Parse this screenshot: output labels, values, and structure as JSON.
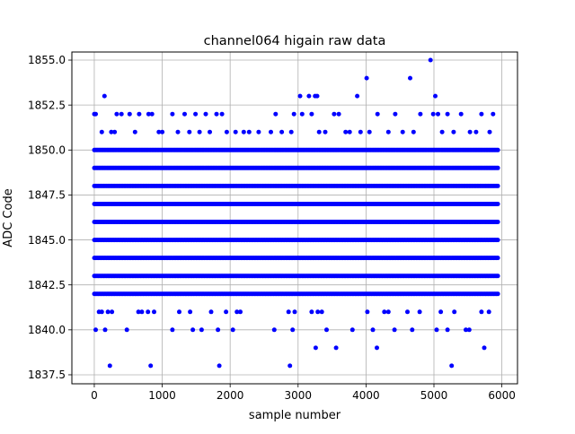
{
  "chart_data": {
    "type": "scatter",
    "title": "channel064 higain raw data",
    "xlabel": "sample number",
    "ylabel": "ADC Code",
    "xlim": [
      -330,
      6230
    ],
    "ylim": [
      1837.0,
      1855.45
    ],
    "x_ticks": [
      0,
      1000,
      2000,
      3000,
      4000,
      5000,
      6000
    ],
    "x_tick_labels": [
      "0",
      "1000",
      "2000",
      "3000",
      "4000",
      "5000",
      "6000"
    ],
    "y_ticks": [
      1837.5,
      1840.0,
      1842.5,
      1845.0,
      1847.5,
      1850.0,
      1852.5,
      1855.0
    ],
    "y_tick_labels": [
      "1837.5",
      "1840.0",
      "1842.5",
      "1845.0",
      "1847.5",
      "1850.0",
      "1852.5",
      "1855.0"
    ],
    "grid": true,
    "marker": "circle",
    "color": "#0000ff",
    "series": [
      {
        "x_range": [
          0,
          5950
        ],
        "x_step": 20,
        "dense_levels": [
          1842,
          1843,
          1844,
          1845,
          1846,
          1847,
          1848,
          1849,
          1850
        ],
        "sparse_points": [
          {
            "x": 0,
            "y": 1852
          },
          {
            "x": 20,
            "y": 1852
          },
          {
            "x": 150,
            "y": 1853
          },
          {
            "x": 110,
            "y": 1851
          },
          {
            "x": 250,
            "y": 1851
          },
          {
            "x": 300,
            "y": 1851
          },
          {
            "x": 330,
            "y": 1852
          },
          {
            "x": 400,
            "y": 1852
          },
          {
            "x": 520,
            "y": 1852
          },
          {
            "x": 600,
            "y": 1851
          },
          {
            "x": 660,
            "y": 1852
          },
          {
            "x": 800,
            "y": 1852
          },
          {
            "x": 850,
            "y": 1852
          },
          {
            "x": 950,
            "y": 1851
          },
          {
            "x": 1000,
            "y": 1851
          },
          {
            "x": 1150,
            "y": 1852
          },
          {
            "x": 1230,
            "y": 1851
          },
          {
            "x": 1330,
            "y": 1852
          },
          {
            "x": 1400,
            "y": 1851
          },
          {
            "x": 1490,
            "y": 1852
          },
          {
            "x": 1550,
            "y": 1851
          },
          {
            "x": 1640,
            "y": 1852
          },
          {
            "x": 1700,
            "y": 1851
          },
          {
            "x": 1800,
            "y": 1852
          },
          {
            "x": 1880,
            "y": 1852
          },
          {
            "x": 1950,
            "y": 1851
          },
          {
            "x": 2080,
            "y": 1851
          },
          {
            "x": 2200,
            "y": 1851
          },
          {
            "x": 2280,
            "y": 1851
          },
          {
            "x": 2420,
            "y": 1851
          },
          {
            "x": 2600,
            "y": 1851
          },
          {
            "x": 2670,
            "y": 1852
          },
          {
            "x": 2760,
            "y": 1851
          },
          {
            "x": 2900,
            "y": 1851
          },
          {
            "x": 2940,
            "y": 1852
          },
          {
            "x": 3030,
            "y": 1853
          },
          {
            "x": 3060,
            "y": 1852
          },
          {
            "x": 3160,
            "y": 1853
          },
          {
            "x": 3200,
            "y": 1852
          },
          {
            "x": 3250,
            "y": 1853
          },
          {
            "x": 3280,
            "y": 1853
          },
          {
            "x": 3310,
            "y": 1851
          },
          {
            "x": 3400,
            "y": 1851
          },
          {
            "x": 3530,
            "y": 1852
          },
          {
            "x": 3600,
            "y": 1852
          },
          {
            "x": 3700,
            "y": 1851
          },
          {
            "x": 3760,
            "y": 1851
          },
          {
            "x": 3870,
            "y": 1853
          },
          {
            "x": 3920,
            "y": 1851
          },
          {
            "x": 4010,
            "y": 1854
          },
          {
            "x": 4050,
            "y": 1851
          },
          {
            "x": 4170,
            "y": 1852
          },
          {
            "x": 4330,
            "y": 1851
          },
          {
            "x": 4430,
            "y": 1852
          },
          {
            "x": 4540,
            "y": 1851
          },
          {
            "x": 4650,
            "y": 1854
          },
          {
            "x": 4700,
            "y": 1851
          },
          {
            "x": 4800,
            "y": 1852
          },
          {
            "x": 4950,
            "y": 1855
          },
          {
            "x": 4990,
            "y": 1852
          },
          {
            "x": 5020,
            "y": 1853
          },
          {
            "x": 5060,
            "y": 1852
          },
          {
            "x": 5120,
            "y": 1851
          },
          {
            "x": 5200,
            "y": 1852
          },
          {
            "x": 5290,
            "y": 1851
          },
          {
            "x": 5400,
            "y": 1852
          },
          {
            "x": 5530,
            "y": 1851
          },
          {
            "x": 5620,
            "y": 1851
          },
          {
            "x": 5700,
            "y": 1852
          },
          {
            "x": 5820,
            "y": 1851
          },
          {
            "x": 5870,
            "y": 1852
          },
          {
            "x": 20,
            "y": 1840
          },
          {
            "x": 70,
            "y": 1841
          },
          {
            "x": 110,
            "y": 1841
          },
          {
            "x": 160,
            "y": 1840
          },
          {
            "x": 200,
            "y": 1841
          },
          {
            "x": 230,
            "y": 1838
          },
          {
            "x": 260,
            "y": 1841
          },
          {
            "x": 480,
            "y": 1840
          },
          {
            "x": 650,
            "y": 1841
          },
          {
            "x": 700,
            "y": 1841
          },
          {
            "x": 790,
            "y": 1841
          },
          {
            "x": 830,
            "y": 1838
          },
          {
            "x": 880,
            "y": 1841
          },
          {
            "x": 1150,
            "y": 1840
          },
          {
            "x": 1250,
            "y": 1841
          },
          {
            "x": 1410,
            "y": 1841
          },
          {
            "x": 1450,
            "y": 1840
          },
          {
            "x": 1580,
            "y": 1840
          },
          {
            "x": 1720,
            "y": 1841
          },
          {
            "x": 1820,
            "y": 1840
          },
          {
            "x": 1840,
            "y": 1838
          },
          {
            "x": 1940,
            "y": 1841
          },
          {
            "x": 2040,
            "y": 1840
          },
          {
            "x": 2100,
            "y": 1841
          },
          {
            "x": 2150,
            "y": 1841
          },
          {
            "x": 2650,
            "y": 1840
          },
          {
            "x": 2860,
            "y": 1841
          },
          {
            "x": 2880,
            "y": 1838
          },
          {
            "x": 2920,
            "y": 1840
          },
          {
            "x": 2950,
            "y": 1841
          },
          {
            "x": 3200,
            "y": 1841
          },
          {
            "x": 3260,
            "y": 1839
          },
          {
            "x": 3290,
            "y": 1841
          },
          {
            "x": 3350,
            "y": 1841
          },
          {
            "x": 3420,
            "y": 1840
          },
          {
            "x": 3560,
            "y": 1839
          },
          {
            "x": 3800,
            "y": 1840
          },
          {
            "x": 4020,
            "y": 1841
          },
          {
            "x": 4100,
            "y": 1840
          },
          {
            "x": 4160,
            "y": 1839
          },
          {
            "x": 4270,
            "y": 1841
          },
          {
            "x": 4330,
            "y": 1841
          },
          {
            "x": 4420,
            "y": 1840
          },
          {
            "x": 4610,
            "y": 1841
          },
          {
            "x": 4680,
            "y": 1840
          },
          {
            "x": 4790,
            "y": 1841
          },
          {
            "x": 5040,
            "y": 1840
          },
          {
            "x": 5100,
            "y": 1841
          },
          {
            "x": 5200,
            "y": 1840
          },
          {
            "x": 5260,
            "y": 1838
          },
          {
            "x": 5300,
            "y": 1841
          },
          {
            "x": 5470,
            "y": 1840
          },
          {
            "x": 5520,
            "y": 1840
          },
          {
            "x": 5700,
            "y": 1841
          },
          {
            "x": 5740,
            "y": 1839
          },
          {
            "x": 5810,
            "y": 1841
          }
        ]
      }
    ]
  }
}
